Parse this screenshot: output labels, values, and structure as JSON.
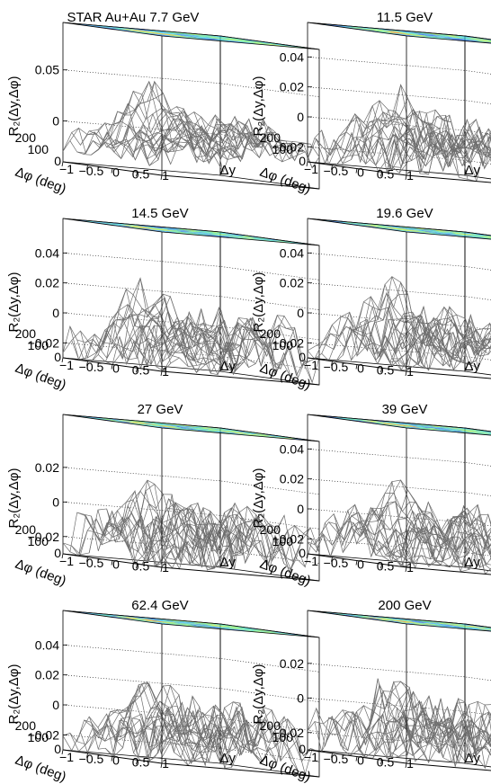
{
  "chart_data": [
    {
      "type": "surface",
      "title": "STAR Au+Au 7.7 GeV",
      "xlabel": "Δy",
      "ylabel": "Δφ (deg)",
      "zlabel": "R₂(Δy,Δφ)",
      "x_ticks": [
        "−1",
        "−0.5",
        "0",
        "0.5",
        "1"
      ],
      "y_ticks": [
        "0",
        "100",
        "200"
      ],
      "z_ticks": [
        "0",
        "0.05"
      ],
      "zlim": [
        -0.04,
        0.07
      ],
      "x_range": [
        -1,
        1
      ],
      "y_range": [
        -90,
        270
      ],
      "near_side_peak": 0.06,
      "away_side_ridge": 0.03,
      "baseline": -0.02,
      "color_projection": "top"
    },
    {
      "type": "surface",
      "title": "11.5 GeV",
      "xlabel": "Δy",
      "ylabel": "Δφ (deg)",
      "zlabel": "R₂(Δy,Δφ)",
      "x_ticks": [
        "−1",
        "−0.5",
        "0",
        "0.5",
        "1"
      ],
      "y_ticks": [
        "0",
        "100",
        "200"
      ],
      "z_ticks": [
        "−0.02",
        "0",
        "0.02",
        "0.04"
      ],
      "zlim": [
        -0.03,
        0.045
      ],
      "x_range": [
        -1,
        1
      ],
      "y_range": [
        -90,
        270
      ],
      "near_side_peak": 0.04,
      "away_side_ridge": 0.02,
      "baseline": -0.02,
      "color_projection": "top"
    },
    {
      "type": "surface",
      "title": "14.5 GeV",
      "xlabel": "Δy",
      "ylabel": "Δφ (deg)",
      "zlabel": "R₂(Δy,Δφ)",
      "x_ticks": [
        "−1",
        "−0.5",
        "0",
        "0.5",
        "1"
      ],
      "y_ticks": [
        "0",
        "100",
        "200"
      ],
      "z_ticks": [
        "−0.02",
        "0",
        "0.02",
        "0.04"
      ],
      "zlim": [
        -0.03,
        0.045
      ],
      "x_range": [
        -1,
        1
      ],
      "y_range": [
        -90,
        270
      ],
      "near_side_peak": 0.04,
      "away_side_ridge": 0.02,
      "baseline": -0.02,
      "color_projection": "top"
    },
    {
      "type": "surface",
      "title": "19.6 GeV",
      "xlabel": "Δy",
      "ylabel": "Δφ (deg)",
      "zlabel": "R₂(Δy,Δφ)",
      "x_ticks": [
        "−1",
        "−0.5",
        "0",
        "0.5",
        "1"
      ],
      "y_ticks": [
        "0",
        "100",
        "200"
      ],
      "z_ticks": [
        "−0.02",
        "0",
        "0.02",
        "0.04"
      ],
      "zlim": [
        -0.03,
        0.045
      ],
      "x_range": [
        -1,
        1
      ],
      "y_range": [
        -90,
        270
      ],
      "near_side_peak": 0.04,
      "away_side_ridge": 0.02,
      "baseline": -0.02,
      "color_projection": "top"
    },
    {
      "type": "surface",
      "title": "27 GeV",
      "xlabel": "Δy",
      "ylabel": "Δφ (deg)",
      "zlabel": "R₂(Δy,Δφ)",
      "x_ticks": [
        "−1",
        "−0.5",
        "0",
        "0.5",
        "1"
      ],
      "y_ticks": [
        "0",
        "100",
        "200"
      ],
      "z_ticks": [
        "−0.02",
        "0",
        "0.02"
      ],
      "zlim": [
        -0.03,
        0.035
      ],
      "x_range": [
        -1,
        1
      ],
      "y_range": [
        -90,
        270
      ],
      "near_side_peak": 0.03,
      "away_side_ridge": 0.015,
      "baseline": -0.02,
      "color_projection": "top"
    },
    {
      "type": "surface",
      "title": "39 GeV",
      "xlabel": "Δy",
      "ylabel": "Δφ (deg)",
      "zlabel": "R₂(Δy,Δφ)",
      "x_ticks": [
        "−1",
        "−0.5",
        "0",
        "0.5",
        "1"
      ],
      "y_ticks": [
        "0",
        "100",
        "200"
      ],
      "z_ticks": [
        "−0.02",
        "0",
        "0.02",
        "0.04"
      ],
      "zlim": [
        -0.03,
        0.045
      ],
      "x_range": [
        -1,
        1
      ],
      "y_range": [
        -90,
        270
      ],
      "near_side_peak": 0.04,
      "away_side_ridge": 0.02,
      "baseline": -0.02,
      "color_projection": "top"
    },
    {
      "type": "surface",
      "title": "62.4 GeV",
      "xlabel": "Δy",
      "ylabel": "Δφ (deg)",
      "zlabel": "R₂(Δy,Δφ)",
      "x_ticks": [
        "−1",
        "−0.5",
        "0",
        "0.5",
        "1"
      ],
      "y_ticks": [
        "0",
        "100",
        "200"
      ],
      "z_ticks": [
        "−0.02",
        "0",
        "0.02",
        "0.04"
      ],
      "zlim": [
        -0.03,
        0.045
      ],
      "x_range": [
        -1,
        1
      ],
      "y_range": [
        -90,
        270
      ],
      "near_side_peak": 0.04,
      "away_side_ridge": 0.02,
      "baseline": -0.02,
      "color_projection": "top"
    },
    {
      "type": "surface",
      "title": "200 GeV",
      "xlabel": "Δy",
      "ylabel": "Δφ (deg)",
      "zlabel": "R₂(Δy,Δφ)",
      "x_ticks": [
        "−1",
        "−0.5",
        "0",
        "0.5",
        "1"
      ],
      "y_ticks": [
        "0",
        "100",
        "200"
      ],
      "z_ticks": [
        "−0.02",
        "0",
        "0.02"
      ],
      "zlim": [
        -0.03,
        0.035
      ],
      "x_range": [
        -1,
        1
      ],
      "y_range": [
        -90,
        270
      ],
      "near_side_peak": 0.03,
      "away_side_ridge": 0.015,
      "baseline": -0.02,
      "color_projection": "top"
    }
  ],
  "colors": {
    "mesh": "#6e6e6e",
    "axes": "#000000",
    "palette": [
      "#1d2bd6",
      "#2a7df2",
      "#36c8f0",
      "#46e6a8",
      "#8cf25a",
      "#d9ee3c",
      "#f7b52c",
      "#f15a24",
      "#c81e1e"
    ]
  }
}
